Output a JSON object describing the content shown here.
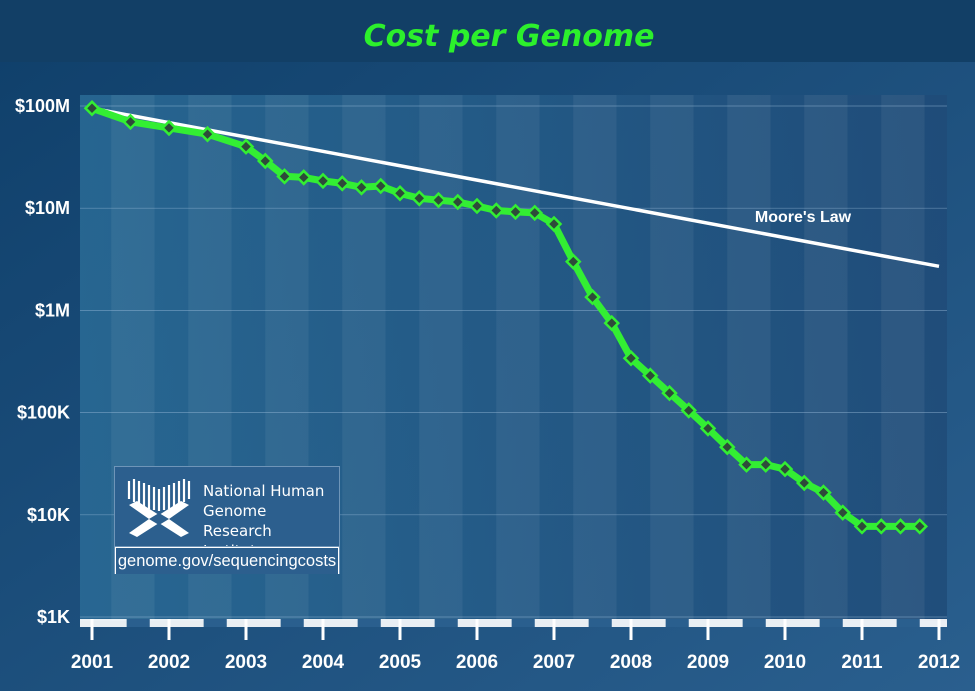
{
  "colors": {
    "background_top": "#0f3f6a",
    "background_bottom": "#2a5f8e",
    "title": "#2cf02c",
    "cost_line": "#33ee33",
    "marker": "#2e4a3a",
    "moores_line": "#ffffff",
    "axis_text": "#ffffff"
  },
  "chart_data": {
    "type": "line",
    "title": "Cost per Genome",
    "yscale": "log",
    "ylim": [
      1000,
      100000000
    ],
    "xlim": [
      2001,
      2012
    ],
    "ytick_values": [
      1000,
      10000,
      100000,
      1000000,
      10000000,
      100000000
    ],
    "ytick_labels": [
      "$1K",
      "$10K",
      "$100K",
      "$1M",
      "$10M",
      "$100M"
    ],
    "xtick_values": [
      2001,
      2002,
      2003,
      2004,
      2005,
      2006,
      2007,
      2008,
      2009,
      2010,
      2011,
      2012
    ],
    "xtick_labels": [
      "2001",
      "2002",
      "2003",
      "2004",
      "2005",
      "2006",
      "2007",
      "2008",
      "2009",
      "2010",
      "2011",
      "2012"
    ],
    "grid": true,
    "series": [
      {
        "x": [
          2001.0,
          2001.5,
          2002.0,
          2002.5,
          2003.0,
          2003.25,
          2003.5,
          2003.75,
          2004.0,
          2004.25,
          2004.5,
          2004.75,
          2005.0,
          2005.25,
          2005.5,
          2005.75,
          2006.0,
          2006.25,
          2006.5,
          2006.75,
          2007.0,
          2007.25,
          2007.5,
          2007.75,
          2008.0,
          2008.25,
          2008.5,
          2008.75,
          2009.0,
          2009.25,
          2009.5,
          2009.75,
          2010.0,
          2010.25,
          2010.5,
          2010.75,
          2011.0,
          2011.25,
          2011.5,
          2011.75
        ],
        "values": [
          95000000,
          70000000,
          61000000,
          53000000,
          40000000,
          29000000,
          20500000,
          20000000,
          18500000,
          17500000,
          16000000,
          16500000,
          14000000,
          12500000,
          12000000,
          11500000,
          10500000,
          9500000,
          9200000,
          9000000,
          7000000,
          3000000,
          1350000,
          750000,
          340000,
          230000,
          155000,
          105000,
          70000,
          46000,
          31000,
          31000,
          28000,
          20500,
          16500,
          10500,
          7700,
          7700,
          7700,
          7700
        ]
      },
      {
        "name": "Moore's Law",
        "x": [
          2001,
          2012
        ],
        "values": [
          95000000,
          2700000
        ]
      }
    ],
    "annotations": [
      "Moore's Law"
    ]
  },
  "logo": {
    "lines": [
      "National Human",
      "Genome Research",
      "Institute"
    ],
    "url": "genome.gov/sequencingcosts"
  }
}
